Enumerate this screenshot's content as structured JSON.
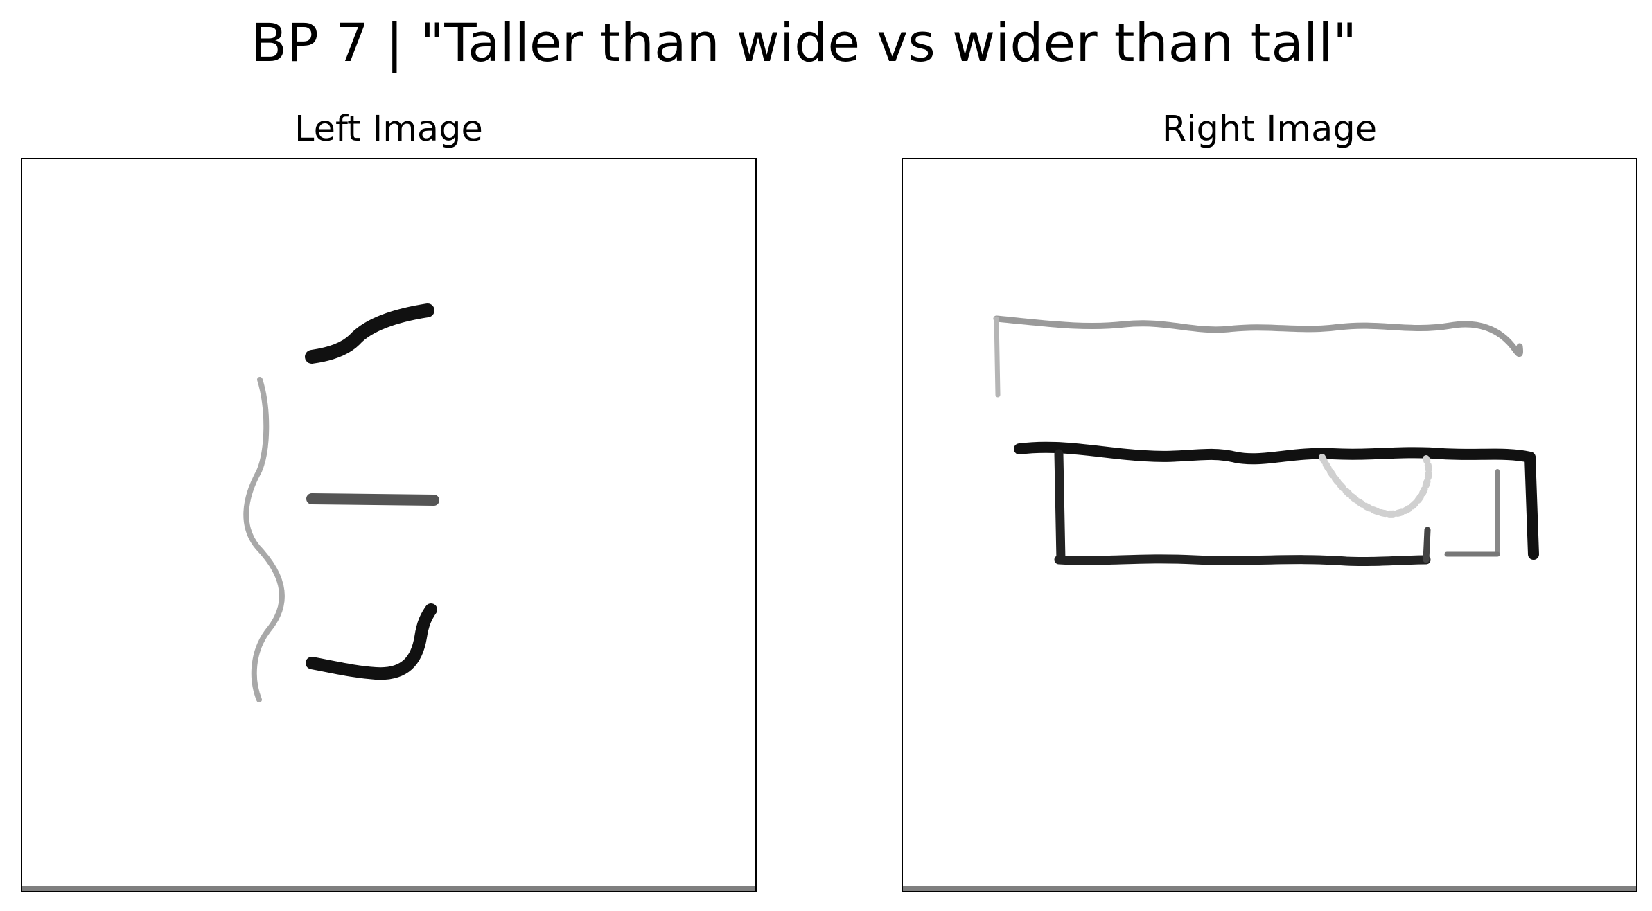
{
  "figure": {
    "title": "BP 7 | \"Taller than wide vs wider than tall\""
  },
  "panels": {
    "left": {
      "title": "Left Image"
    },
    "right": {
      "title": "Right Image"
    }
  },
  "colors": {
    "background": "#ffffff",
    "ink_dark": "#111111",
    "ink_mid": "#555555",
    "ink_light": "#9a9a9a",
    "frame": "#000000"
  }
}
